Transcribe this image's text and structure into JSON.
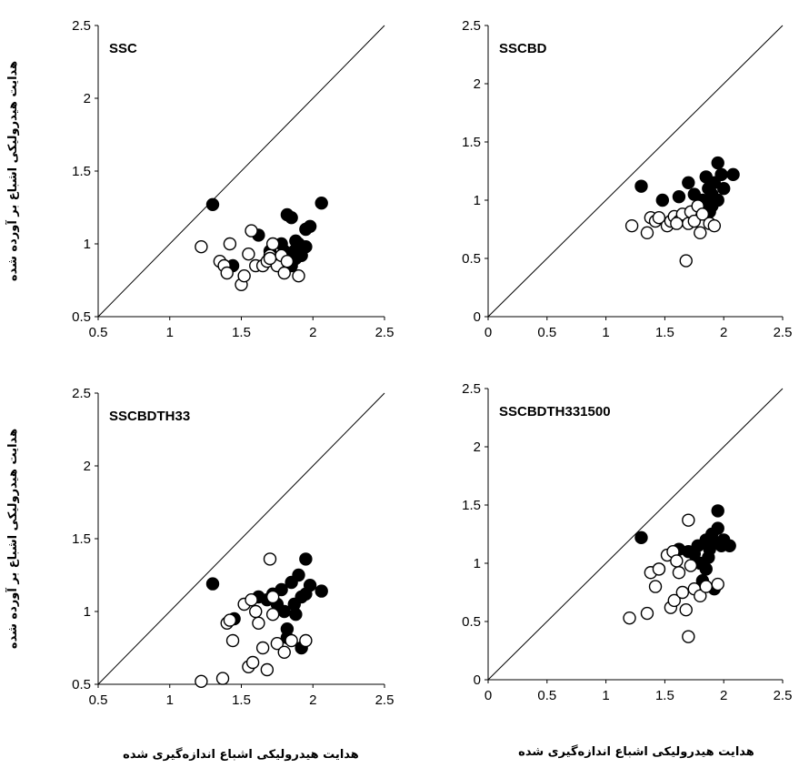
{
  "axis_labels": {
    "y": "هدایت هیدرولیکی اشباع بر آورده شده",
    "x": "هدایت هیدرولیکی اشباع اندازه‌گیری شده"
  },
  "colors": {
    "axis": "#000000",
    "marker_fill_filled": "#000000",
    "marker_fill_open": "#ffffff",
    "diagonal": "#000000"
  },
  "chart_data": [
    {
      "type": "scatter",
      "title": "SSC",
      "xlim": [
        0.5,
        2.5
      ],
      "ylim": [
        0.5,
        2.5
      ],
      "xticks": [
        "0.5",
        "1",
        "1.5",
        "2",
        "2.5"
      ],
      "yticks": [
        "0.5",
        "1",
        "1.5",
        "2",
        "2.5"
      ],
      "xlabel": "",
      "ylabel": "هدایت هیدرولیکی اشباع بر آورده شده",
      "reference_line": "y = x",
      "series": [
        {
          "marker": "filled",
          "points": [
            [
              1.3,
              1.27
            ],
            [
              1.44,
              0.85
            ],
            [
              1.62,
              1.06
            ],
            [
              1.7,
              0.95
            ],
            [
              1.75,
              0.9
            ],
            [
              1.8,
              0.88
            ],
            [
              1.82,
              1.2
            ],
            [
              1.85,
              1.18
            ],
            [
              1.87,
              0.95
            ],
            [
              1.88,
              0.9
            ],
            [
              1.9,
              1.0
            ],
            [
              1.92,
              0.92
            ],
            [
              1.95,
              0.98
            ],
            [
              1.95,
              1.1
            ],
            [
              1.98,
              1.12
            ],
            [
              2.06,
              1.28
            ],
            [
              1.85,
              0.85
            ],
            [
              1.8,
              0.95
            ],
            [
              1.88,
              1.02
            ],
            [
              1.78,
              1.0
            ]
          ]
        },
        {
          "marker": "open",
          "points": [
            [
              1.22,
              0.98
            ],
            [
              1.35,
              0.88
            ],
            [
              1.38,
              0.85
            ],
            [
              1.4,
              0.8
            ],
            [
              1.42,
              1.0
            ],
            [
              1.5,
              0.72
            ],
            [
              1.52,
              0.78
            ],
            [
              1.55,
              0.93
            ],
            [
              1.57,
              1.09
            ],
            [
              1.6,
              0.85
            ],
            [
              1.65,
              0.85
            ],
            [
              1.68,
              0.88
            ],
            [
              1.7,
              0.92
            ],
            [
              1.72,
              1.0
            ],
            [
              1.75,
              0.85
            ],
            [
              1.78,
              0.92
            ],
            [
              1.8,
              0.8
            ],
            [
              1.82,
              0.88
            ],
            [
              1.9,
              0.78
            ],
            [
              1.7,
              0.9
            ]
          ]
        }
      ]
    },
    {
      "type": "scatter",
      "title": "SSCBD",
      "xlim": [
        0,
        2.5
      ],
      "ylim": [
        0,
        2.5
      ],
      "xticks": [
        "0",
        "0.5",
        "1",
        "1.5",
        "2",
        "2.5"
      ],
      "yticks": [
        "0",
        "0.5",
        "1",
        "1.5",
        "2",
        "2.5"
      ],
      "xlabel": "",
      "ylabel": "",
      "reference_line": "y = x",
      "series": [
        {
          "marker": "filled",
          "points": [
            [
              1.3,
              1.12
            ],
            [
              1.48,
              1.0
            ],
            [
              1.62,
              1.03
            ],
            [
              1.7,
              1.15
            ],
            [
              1.75,
              1.05
            ],
            [
              1.8,
              0.95
            ],
            [
              1.82,
              1.0
            ],
            [
              1.85,
              1.2
            ],
            [
              1.87,
              1.1
            ],
            [
              1.88,
              0.9
            ],
            [
              1.9,
              1.05
            ],
            [
              1.92,
              1.15
            ],
            [
              1.95,
              1.32
            ],
            [
              1.95,
              1.0
            ],
            [
              1.98,
              1.22
            ],
            [
              2.08,
              1.22
            ],
            [
              1.85,
              0.92
            ],
            [
              1.8,
              0.88
            ],
            [
              1.9,
              0.95
            ],
            [
              2.0,
              1.1
            ]
          ]
        },
        {
          "marker": "open",
          "points": [
            [
              1.22,
              0.78
            ],
            [
              1.35,
              0.72
            ],
            [
              1.38,
              0.85
            ],
            [
              1.42,
              0.82
            ],
            [
              1.45,
              0.85
            ],
            [
              1.52,
              0.78
            ],
            [
              1.55,
              0.82
            ],
            [
              1.58,
              0.86
            ],
            [
              1.62,
              0.82
            ],
            [
              1.65,
              0.88
            ],
            [
              1.68,
              0.48
            ],
            [
              1.7,
              0.8
            ],
            [
              1.72,
              0.9
            ],
            [
              1.75,
              0.82
            ],
            [
              1.78,
              0.95
            ],
            [
              1.8,
              0.72
            ],
            [
              1.82,
              0.88
            ],
            [
              1.88,
              0.8
            ],
            [
              1.92,
              0.78
            ],
            [
              1.6,
              0.8
            ]
          ]
        }
      ]
    },
    {
      "type": "scatter",
      "title": "SSCBDTH33",
      "xlim": [
        0.5,
        2.5
      ],
      "ylim": [
        0.5,
        2.5
      ],
      "xticks": [
        "0.5",
        "1",
        "1.5",
        "2",
        "2.5"
      ],
      "yticks": [
        "0.5",
        "1",
        "1.5",
        "2",
        "2.5"
      ],
      "xlabel": "هدایت هیدرولیکی اشباع اندازه‌گیری شده",
      "ylabel": "هدایت هیدرولیکی اشباع بر آورده شده",
      "reference_line": "y = x",
      "series": [
        {
          "marker": "filled",
          "points": [
            [
              1.3,
              1.19
            ],
            [
              1.45,
              0.95
            ],
            [
              1.62,
              1.1
            ],
            [
              1.68,
              1.08
            ],
            [
              1.72,
              1.12
            ],
            [
              1.75,
              1.05
            ],
            [
              1.78,
              1.15
            ],
            [
              1.8,
              1.0
            ],
            [
              1.82,
              0.88
            ],
            [
              1.85,
              1.2
            ],
            [
              1.87,
              1.05
            ],
            [
              1.88,
              0.98
            ],
            [
              1.9,
              1.25
            ],
            [
              1.92,
              1.1
            ],
            [
              1.95,
              1.36
            ],
            [
              1.95,
              1.12
            ],
            [
              1.98,
              1.18
            ],
            [
              2.06,
              1.14
            ],
            [
              1.82,
              0.82
            ],
            [
              1.92,
              0.75
            ]
          ]
        },
        {
          "marker": "open",
          "points": [
            [
              1.22,
              0.52
            ],
            [
              1.37,
              0.54
            ],
            [
              1.4,
              0.92
            ],
            [
              1.42,
              0.94
            ],
            [
              1.44,
              0.8
            ],
            [
              1.52,
              1.05
            ],
            [
              1.55,
              0.62
            ],
            [
              1.57,
              1.08
            ],
            [
              1.58,
              0.65
            ],
            [
              1.62,
              0.92
            ],
            [
              1.65,
              0.75
            ],
            [
              1.68,
              0.6
            ],
            [
              1.7,
              1.36
            ],
            [
              1.72,
              0.98
            ],
            [
              1.75,
              0.78
            ],
            [
              1.8,
              0.72
            ],
            [
              1.85,
              0.8
            ],
            [
              1.95,
              0.8
            ],
            [
              1.6,
              1.0
            ],
            [
              1.72,
              1.1
            ]
          ]
        }
      ]
    },
    {
      "type": "scatter",
      "title": "SSCBDTH331500",
      "xlim": [
        0,
        2.5
      ],
      "ylim": [
        0,
        2.5
      ],
      "xticks": [
        "0",
        "0.5",
        "1",
        "1.5",
        "2",
        "2.5"
      ],
      "yticks": [
        "0",
        "0.5",
        "1",
        "1.5",
        "2",
        "2.5"
      ],
      "xlabel": "هدایت هیدرولیکی اشباع اندازه‌گیری شده",
      "ylabel": "",
      "reference_line": "y = x",
      "series": [
        {
          "marker": "filled",
          "points": [
            [
              1.3,
              1.22
            ],
            [
              1.45,
              0.95
            ],
            [
              1.62,
              1.12
            ],
            [
              1.7,
              1.1
            ],
            [
              1.75,
              1.08
            ],
            [
              1.78,
              1.15
            ],
            [
              1.8,
              1.0
            ],
            [
              1.82,
              0.85
            ],
            [
              1.85,
              1.2
            ],
            [
              1.87,
              1.05
            ],
            [
              1.88,
              1.12
            ],
            [
              1.9,
              1.25
            ],
            [
              1.92,
              1.18
            ],
            [
              1.95,
              1.45
            ],
            [
              1.95,
              1.3
            ],
            [
              1.98,
              1.15
            ],
            [
              2.05,
              1.15
            ],
            [
              1.92,
              0.78
            ],
            [
              1.85,
              0.95
            ],
            [
              2.0,
              1.2
            ]
          ]
        },
        {
          "marker": "open",
          "points": [
            [
              1.2,
              0.53
            ],
            [
              1.35,
              0.57
            ],
            [
              1.38,
              0.92
            ],
            [
              1.42,
              0.8
            ],
            [
              1.45,
              0.95
            ],
            [
              1.52,
              1.07
            ],
            [
              1.55,
              0.62
            ],
            [
              1.57,
              1.1
            ],
            [
              1.58,
              0.68
            ],
            [
              1.62,
              0.92
            ],
            [
              1.65,
              0.75
            ],
            [
              1.68,
              0.6
            ],
            [
              1.7,
              0.37
            ],
            [
              1.7,
              1.37
            ],
            [
              1.72,
              0.98
            ],
            [
              1.75,
              0.78
            ],
            [
              1.8,
              0.72
            ],
            [
              1.85,
              0.8
            ],
            [
              1.95,
              0.82
            ],
            [
              1.6,
              1.02
            ]
          ]
        }
      ]
    }
  ]
}
